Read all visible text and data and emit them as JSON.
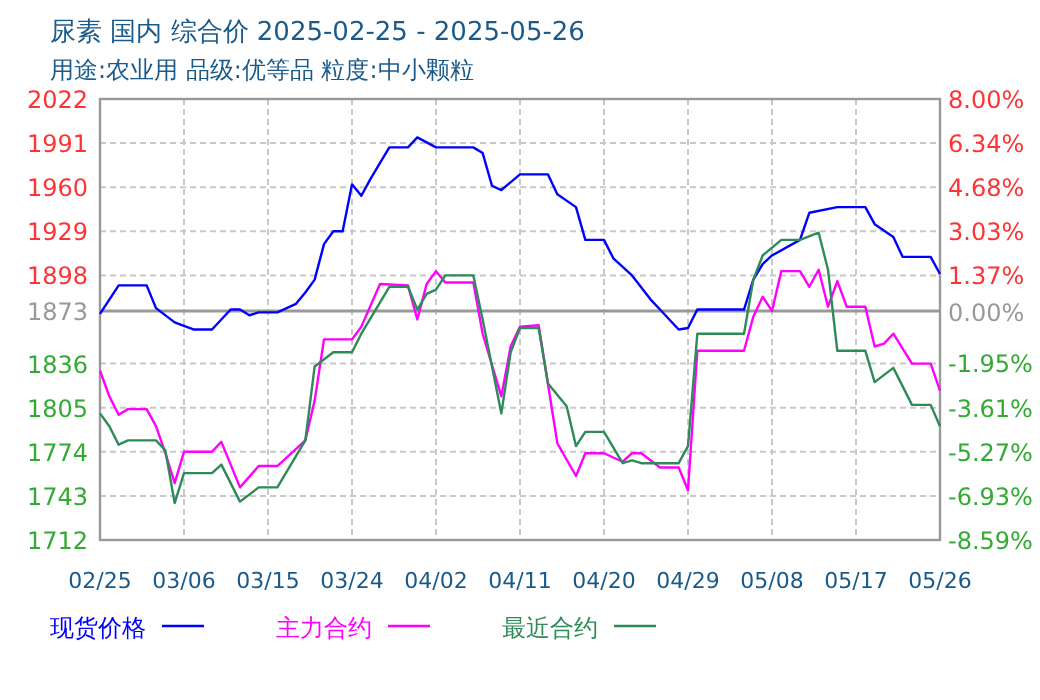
{
  "chart_data": {
    "type": "line",
    "title": "尿素 国内 综合价 2025-02-25 - 2025-05-26",
    "subtitle": "用途:农业用 品级:优等品 粒度:中小颗粒",
    "xlim": [
      "2025-02-25",
      "2025-05-26"
    ],
    "xticks": [
      {
        "value": "2025-02-25",
        "label": "02/25"
      },
      {
        "value": "2025-03-06",
        "label": "03/06"
      },
      {
        "value": "2025-03-15",
        "label": "03/15"
      },
      {
        "value": "2025-03-24",
        "label": "03/24"
      },
      {
        "value": "2025-04-02",
        "label": "04/02"
      },
      {
        "value": "2025-04-11",
        "label": "04/11"
      },
      {
        "value": "2025-04-20",
        "label": "04/20"
      },
      {
        "value": "2025-04-29",
        "label": "04/29"
      },
      {
        "value": "2025-05-08",
        "label": "05/08"
      },
      {
        "value": "2025-05-17",
        "label": "05/17"
      },
      {
        "value": "2025-05-26",
        "label": "05/26"
      }
    ],
    "ylim": [
      1712,
      2022
    ],
    "yticks": [
      1712,
      1743,
      1774,
      1805,
      1836,
      1873,
      1898,
      1929,
      1960,
      1991,
      2022
    ],
    "y2lim": [
      -8.59,
      8.0
    ],
    "y2ticks": [
      {
        "value": -8.59,
        "label": "-8.59%"
      },
      {
        "value": -6.93,
        "label": "-6.93%"
      },
      {
        "value": -5.27,
        "label": "-5.27%"
      },
      {
        "value": -3.61,
        "label": "-3.61%"
      },
      {
        "value": -1.95,
        "label": "-1.95%"
      },
      {
        "value": 0,
        "label": "0.00%"
      },
      {
        "value": 1.37,
        "label": "1.37%"
      },
      {
        "value": 3.03,
        "label": "3.03%"
      },
      {
        "value": 4.68,
        "label": "4.68%"
      },
      {
        "value": 6.34,
        "label": "6.34%"
      },
      {
        "value": 8.0,
        "label": "8.00%"
      }
    ],
    "grid": true,
    "legend": "bottom",
    "ref_lines": [
      {
        "axis": "y",
        "value": 1873,
        "color": "#999999"
      }
    ],
    "series": [
      {
        "name": "现货价格",
        "color": "#0000ff",
        "x": [
          "2025-02-25",
          "2025-02-27",
          "2025-03-02",
          "2025-03-03",
          "2025-03-05",
          "2025-03-07",
          "2025-03-09",
          "2025-03-11",
          "2025-03-12",
          "2025-03-13",
          "2025-03-14",
          "2025-03-16",
          "2025-03-18",
          "2025-03-19",
          "2025-03-20",
          "2025-03-21",
          "2025-03-22",
          "2025-03-23",
          "2025-03-24",
          "2025-03-25",
          "2025-03-26",
          "2025-03-28",
          "2025-03-30",
          "2025-03-31",
          "2025-04-02",
          "2025-04-06",
          "2025-04-07",
          "2025-04-08",
          "2025-04-09",
          "2025-04-11",
          "2025-04-14",
          "2025-04-15",
          "2025-04-17",
          "2025-04-18",
          "2025-04-20",
          "2025-04-21",
          "2025-04-23",
          "2025-04-25",
          "2025-04-26",
          "2025-04-28",
          "2025-04-29",
          "2025-04-30",
          "2025-05-05",
          "2025-05-06",
          "2025-05-07",
          "2025-05-08",
          "2025-05-11",
          "2025-05-12",
          "2025-05-15",
          "2025-05-18",
          "2025-05-19",
          "2025-05-21",
          "2025-05-22",
          "2025-05-25",
          "2025-05-26"
        ],
        "values": [
          1871,
          1891,
          1891,
          1875,
          1865,
          1860,
          1860,
          1874,
          1874,
          1870,
          1872,
          1872,
          1878,
          1886,
          1895,
          1920,
          1929,
          1929,
          1962,
          1954,
          1966,
          1988,
          1988,
          1995,
          1988,
          1988,
          1984,
          1961,
          1958,
          1969,
          1969,
          1955,
          1946,
          1923,
          1923,
          1910,
          1898,
          1881,
          1874,
          1860,
          1861,
          1874,
          1874,
          1895,
          1906,
          1912,
          1923,
          1942,
          1946,
          1946,
          1934,
          1925,
          1911,
          1911,
          1899
        ]
      },
      {
        "name": "主力合约",
        "color": "#ff00ff",
        "x": [
          "2025-02-25",
          "2025-02-26",
          "2025-02-27",
          "2025-02-28",
          "2025-03-02",
          "2025-03-03",
          "2025-03-04",
          "2025-03-05",
          "2025-03-06",
          "2025-03-09",
          "2025-03-10",
          "2025-03-12",
          "2025-03-14",
          "2025-03-16",
          "2025-03-19",
          "2025-03-20",
          "2025-03-21",
          "2025-03-24",
          "2025-03-25",
          "2025-03-27",
          "2025-03-30",
          "2025-03-31",
          "2025-04-01",
          "2025-04-02",
          "2025-04-03",
          "2025-04-06",
          "2025-04-07",
          "2025-04-09",
          "2025-04-10",
          "2025-04-11",
          "2025-04-13",
          "2025-04-15",
          "2025-04-17",
          "2025-04-18",
          "2025-04-20",
          "2025-04-22",
          "2025-04-23",
          "2025-04-24",
          "2025-04-26",
          "2025-04-28",
          "2025-04-29",
          "2025-04-30",
          "2025-05-05",
          "2025-05-06",
          "2025-05-07",
          "2025-05-08",
          "2025-05-09",
          "2025-05-11",
          "2025-05-12",
          "2025-05-13",
          "2025-05-14",
          "2025-05-15",
          "2025-05-16",
          "2025-05-18",
          "2025-05-19",
          "2025-05-20",
          "2025-05-21",
          "2025-05-23",
          "2025-05-25",
          "2025-05-26"
        ],
        "values": [
          1831,
          1813,
          1800,
          1804,
          1804,
          1792,
          1773,
          1752,
          1774,
          1774,
          1781,
          1749,
          1764,
          1764,
          1782,
          1810,
          1853,
          1853,
          1862,
          1892,
          1891,
          1867,
          1892,
          1901,
          1893,
          1893,
          1857,
          1813,
          1848,
          1862,
          1863,
          1780,
          1757,
          1773,
          1773,
          1767,
          1773,
          1773,
          1763,
          1763,
          1747,
          1845,
          1845,
          1869,
          1883,
          1873,
          1901,
          1901,
          1890,
          1902,
          1876,
          1894,
          1876,
          1876,
          1848,
          1850,
          1857,
          1836,
          1836,
          1817
        ]
      },
      {
        "name": "最近合约",
        "color": "#2e8b57",
        "x": [
          "2025-02-25",
          "2025-02-26",
          "2025-02-27",
          "2025-02-28",
          "2025-03-03",
          "2025-03-04",
          "2025-03-05",
          "2025-03-06",
          "2025-03-09",
          "2025-03-10",
          "2025-03-12",
          "2025-03-14",
          "2025-03-16",
          "2025-03-19",
          "2025-03-20",
          "2025-03-22",
          "2025-03-24",
          "2025-03-25",
          "2025-03-28",
          "2025-03-30",
          "2025-03-31",
          "2025-04-01",
          "2025-04-02",
          "2025-04-03",
          "2025-04-06",
          "2025-04-07",
          "2025-04-09",
          "2025-04-10",
          "2025-04-11",
          "2025-04-13",
          "2025-04-14",
          "2025-04-16",
          "2025-04-17",
          "2025-04-18",
          "2025-04-20",
          "2025-04-22",
          "2025-04-23",
          "2025-04-24",
          "2025-04-28",
          "2025-04-29",
          "2025-04-30",
          "2025-05-05",
          "2025-05-06",
          "2025-05-07",
          "2025-05-09",
          "2025-05-11",
          "2025-05-13",
          "2025-05-14",
          "2025-05-15",
          "2025-05-18",
          "2025-05-19",
          "2025-05-21",
          "2025-05-23",
          "2025-05-25",
          "2025-05-26"
        ],
        "values": [
          1801,
          1792,
          1779,
          1782,
          1782,
          1775,
          1738,
          1759,
          1759,
          1765,
          1739,
          1749,
          1749,
          1782,
          1834,
          1844,
          1844,
          1857,
          1890,
          1890,
          1874,
          1885,
          1888,
          1898,
          1898,
          1867,
          1801,
          1844,
          1861,
          1861,
          1822,
          1806,
          1778,
          1788,
          1788,
          1766,
          1768,
          1766,
          1766,
          1778,
          1857,
          1857,
          1895,
          1912,
          1923,
          1923,
          1928,
          1902,
          1845,
          1845,
          1823,
          1833,
          1807,
          1807,
          1792
        ]
      }
    ]
  }
}
